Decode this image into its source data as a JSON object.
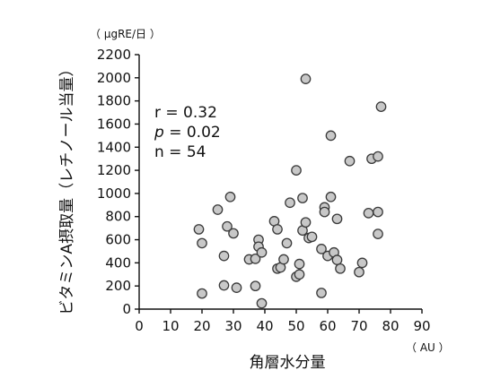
{
  "chart_data": {
    "type": "scatter",
    "xlabel": "角層水分量",
    "ylabel": "ビタミンA摂取量（レチノール当量）",
    "x_unit": "（ AU ）",
    "y_unit": "（ µgRE/日 ）",
    "xlim": [
      0,
      90
    ],
    "ylim": [
      0,
      2200
    ],
    "xticks": [
      "0",
      "10",
      "20",
      "30",
      "40",
      "50",
      "60",
      "70",
      "80",
      "90"
    ],
    "yticks": [
      "0",
      "200",
      "400",
      "600",
      "800",
      "1000",
      "1200",
      "1400",
      "1600",
      "1800",
      "2000",
      "2200"
    ],
    "grid": false,
    "annotations": {
      "r": "r = 0.32",
      "p_symbol": "p",
      "p_rest": " = 0.02",
      "n": "n = 54"
    },
    "points": [
      {
        "x": 19,
        "y": 690
      },
      {
        "x": 20,
        "y": 570
      },
      {
        "x": 20,
        "y": 135
      },
      {
        "x": 25,
        "y": 860
      },
      {
        "x": 27,
        "y": 460
      },
      {
        "x": 27,
        "y": 205
      },
      {
        "x": 28,
        "y": 715
      },
      {
        "x": 29,
        "y": 970
      },
      {
        "x": 30,
        "y": 655
      },
      {
        "x": 31,
        "y": 185
      },
      {
        "x": 35,
        "y": 430
      },
      {
        "x": 37,
        "y": 435
      },
      {
        "x": 37,
        "y": 200
      },
      {
        "x": 38,
        "y": 600
      },
      {
        "x": 38,
        "y": 540
      },
      {
        "x": 39,
        "y": 490
      },
      {
        "x": 39,
        "y": 50
      },
      {
        "x": 43,
        "y": 760
      },
      {
        "x": 44,
        "y": 690
      },
      {
        "x": 44,
        "y": 350
      },
      {
        "x": 45,
        "y": 360
      },
      {
        "x": 46,
        "y": 430
      },
      {
        "x": 47,
        "y": 570
      },
      {
        "x": 48,
        "y": 920
      },
      {
        "x": 50,
        "y": 1200
      },
      {
        "x": 50,
        "y": 280
      },
      {
        "x": 51,
        "y": 300
      },
      {
        "x": 51,
        "y": 390
      },
      {
        "x": 52,
        "y": 960
      },
      {
        "x": 52,
        "y": 680
      },
      {
        "x": 53,
        "y": 750
      },
      {
        "x": 53,
        "y": 1990
      },
      {
        "x": 54,
        "y": 615
      },
      {
        "x": 55,
        "y": 625
      },
      {
        "x": 58,
        "y": 520
      },
      {
        "x": 58,
        "y": 140
      },
      {
        "x": 59,
        "y": 880
      },
      {
        "x": 59,
        "y": 840
      },
      {
        "x": 60,
        "y": 460
      },
      {
        "x": 61,
        "y": 1500
      },
      {
        "x": 61,
        "y": 970
      },
      {
        "x": 62,
        "y": 490
      },
      {
        "x": 63,
        "y": 780
      },
      {
        "x": 63,
        "y": 425
      },
      {
        "x": 64,
        "y": 350
      },
      {
        "x": 67,
        "y": 1280
      },
      {
        "x": 70,
        "y": 320
      },
      {
        "x": 71,
        "y": 400
      },
      {
        "x": 73,
        "y": 830
      },
      {
        "x": 74,
        "y": 1300
      },
      {
        "x": 76,
        "y": 1320
      },
      {
        "x": 76,
        "y": 840
      },
      {
        "x": 76,
        "y": 650
      },
      {
        "x": 77,
        "y": 1750
      }
    ]
  }
}
